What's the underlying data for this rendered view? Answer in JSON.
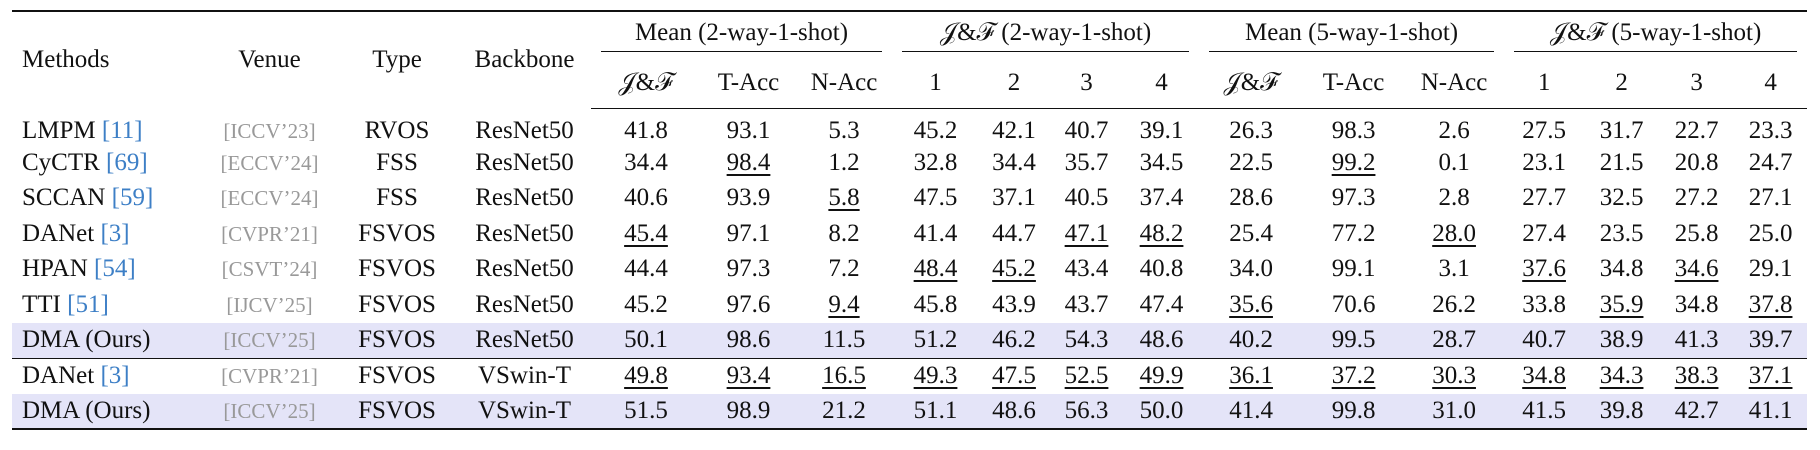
{
  "header": {
    "columns": [
      "Methods",
      "Venue",
      "Type",
      "Backbone"
    ],
    "groups": [
      {
        "label": "Mean (2-way-1-shot)",
        "subcolumns": [
          "𝒥&ℱ",
          "T-Acc",
          "N-Acc"
        ]
      },
      {
        "label": "𝒥&ℱ (2-way-1-shot)",
        "subcolumns": [
          "1",
          "2",
          "3",
          "4"
        ]
      },
      {
        "label": "Mean (5-way-1-shot)",
        "subcolumns": [
          "𝒥&ℱ",
          "T-Acc",
          "N-Acc"
        ]
      },
      {
        "label": "𝒥&ℱ (5-way-1-shot)",
        "subcolumns": [
          "1",
          "2",
          "3",
          "4"
        ]
      }
    ]
  },
  "sections": [
    {
      "rows": [
        {
          "method": "LMPM",
          "ref": "[11]",
          "venue": "[ICCV’23]",
          "type": "RVOS",
          "backbone": "ResNet50",
          "values": [
            "41.8",
            "93.1",
            "5.3",
            "45.2",
            "42.1",
            "40.7",
            "39.1",
            "26.3",
            "98.3",
            "2.6",
            "27.5",
            "31.7",
            "22.7",
            "23.3"
          ],
          "underline": []
        },
        {
          "method": "CyCTR",
          "ref": "[69]",
          "venue": "[ECCV’24]",
          "type": "FSS",
          "backbone": "ResNet50",
          "values": [
            "34.4",
            "98.4",
            "1.2",
            "32.8",
            "34.4",
            "35.7",
            "34.5",
            "22.5",
            "99.2",
            "0.1",
            "23.1",
            "21.5",
            "20.8",
            "24.7"
          ],
          "underline": [
            1,
            8
          ]
        },
        {
          "method": "SCCAN",
          "ref": "[59]",
          "venue": "[ECCV’24]",
          "type": "FSS",
          "backbone": "ResNet50",
          "values": [
            "40.6",
            "93.9",
            "5.8",
            "47.5",
            "37.1",
            "40.5",
            "37.4",
            "28.6",
            "97.3",
            "2.8",
            "27.7",
            "32.5",
            "27.2",
            "27.1"
          ],
          "underline": [
            2
          ]
        },
        {
          "method": "DANet",
          "ref": "[3]",
          "venue": "[CVPR’21]",
          "type": "FSVOS",
          "backbone": "ResNet50",
          "values": [
            "45.4",
            "97.1",
            "8.2",
            "41.4",
            "44.7",
            "47.1",
            "48.2",
            "25.4",
            "77.2",
            "28.0",
            "27.4",
            "23.5",
            "25.8",
            "25.0"
          ],
          "underline": [
            0,
            5,
            6,
            9
          ]
        },
        {
          "method": "HPAN",
          "ref": "[54]",
          "venue": "[CSVT’24]",
          "type": "FSVOS",
          "backbone": "ResNet50",
          "values": [
            "44.4",
            "97.3",
            "7.2",
            "48.4",
            "45.2",
            "43.4",
            "40.8",
            "34.0",
            "99.1",
            "3.1",
            "37.6",
            "34.8",
            "34.6",
            "29.1"
          ],
          "underline": [
            3,
            4,
            10,
            12
          ]
        },
        {
          "method": "TTI",
          "ref": "[51]",
          "venue": "[IJCV’25]",
          "type": "FSVOS",
          "backbone": "ResNet50",
          "values": [
            "45.2",
            "97.6",
            "9.4",
            "45.8",
            "43.9",
            "43.7",
            "47.4",
            "35.6",
            "70.6",
            "26.2",
            "33.8",
            "35.9",
            "34.8",
            "37.8"
          ],
          "underline": [
            2,
            7,
            11,
            13
          ]
        },
        {
          "method": "DMA (Ours)",
          "venue": "[ICCV’25]",
          "type": "FSVOS",
          "backbone": "ResNet50",
          "values": [
            "50.1",
            "98.6",
            "11.5",
            "51.2",
            "46.2",
            "54.3",
            "48.6",
            "40.2",
            "99.5",
            "28.7",
            "40.7",
            "38.9",
            "41.3",
            "39.7"
          ],
          "underline": [],
          "bold": true
        }
      ]
    },
    {
      "rows": [
        {
          "method": "DANet",
          "ref": "[3]",
          "venue": "[CVPR’21]",
          "type": "FSVOS",
          "backbone": "VSwin-T",
          "values": [
            "49.8",
            "93.4",
            "16.5",
            "49.3",
            "47.5",
            "52.5",
            "49.9",
            "36.1",
            "37.2",
            "30.3",
            "34.8",
            "34.3",
            "38.3",
            "37.1"
          ],
          "underline": [
            0,
            1,
            2,
            3,
            4,
            5,
            6,
            7,
            8,
            9,
            10,
            11,
            12,
            13
          ]
        },
        {
          "method": "DMA (Ours)",
          "venue": "[ICCV’25]",
          "type": "FSVOS",
          "backbone": "VSwin-T",
          "values": [
            "51.5",
            "98.9",
            "21.2",
            "51.1",
            "48.6",
            "56.3",
            "50.0",
            "41.4",
            "99.8",
            "31.0",
            "41.5",
            "39.8",
            "42.7",
            "41.1"
          ],
          "underline": [],
          "bold": true
        }
      ]
    }
  ]
}
